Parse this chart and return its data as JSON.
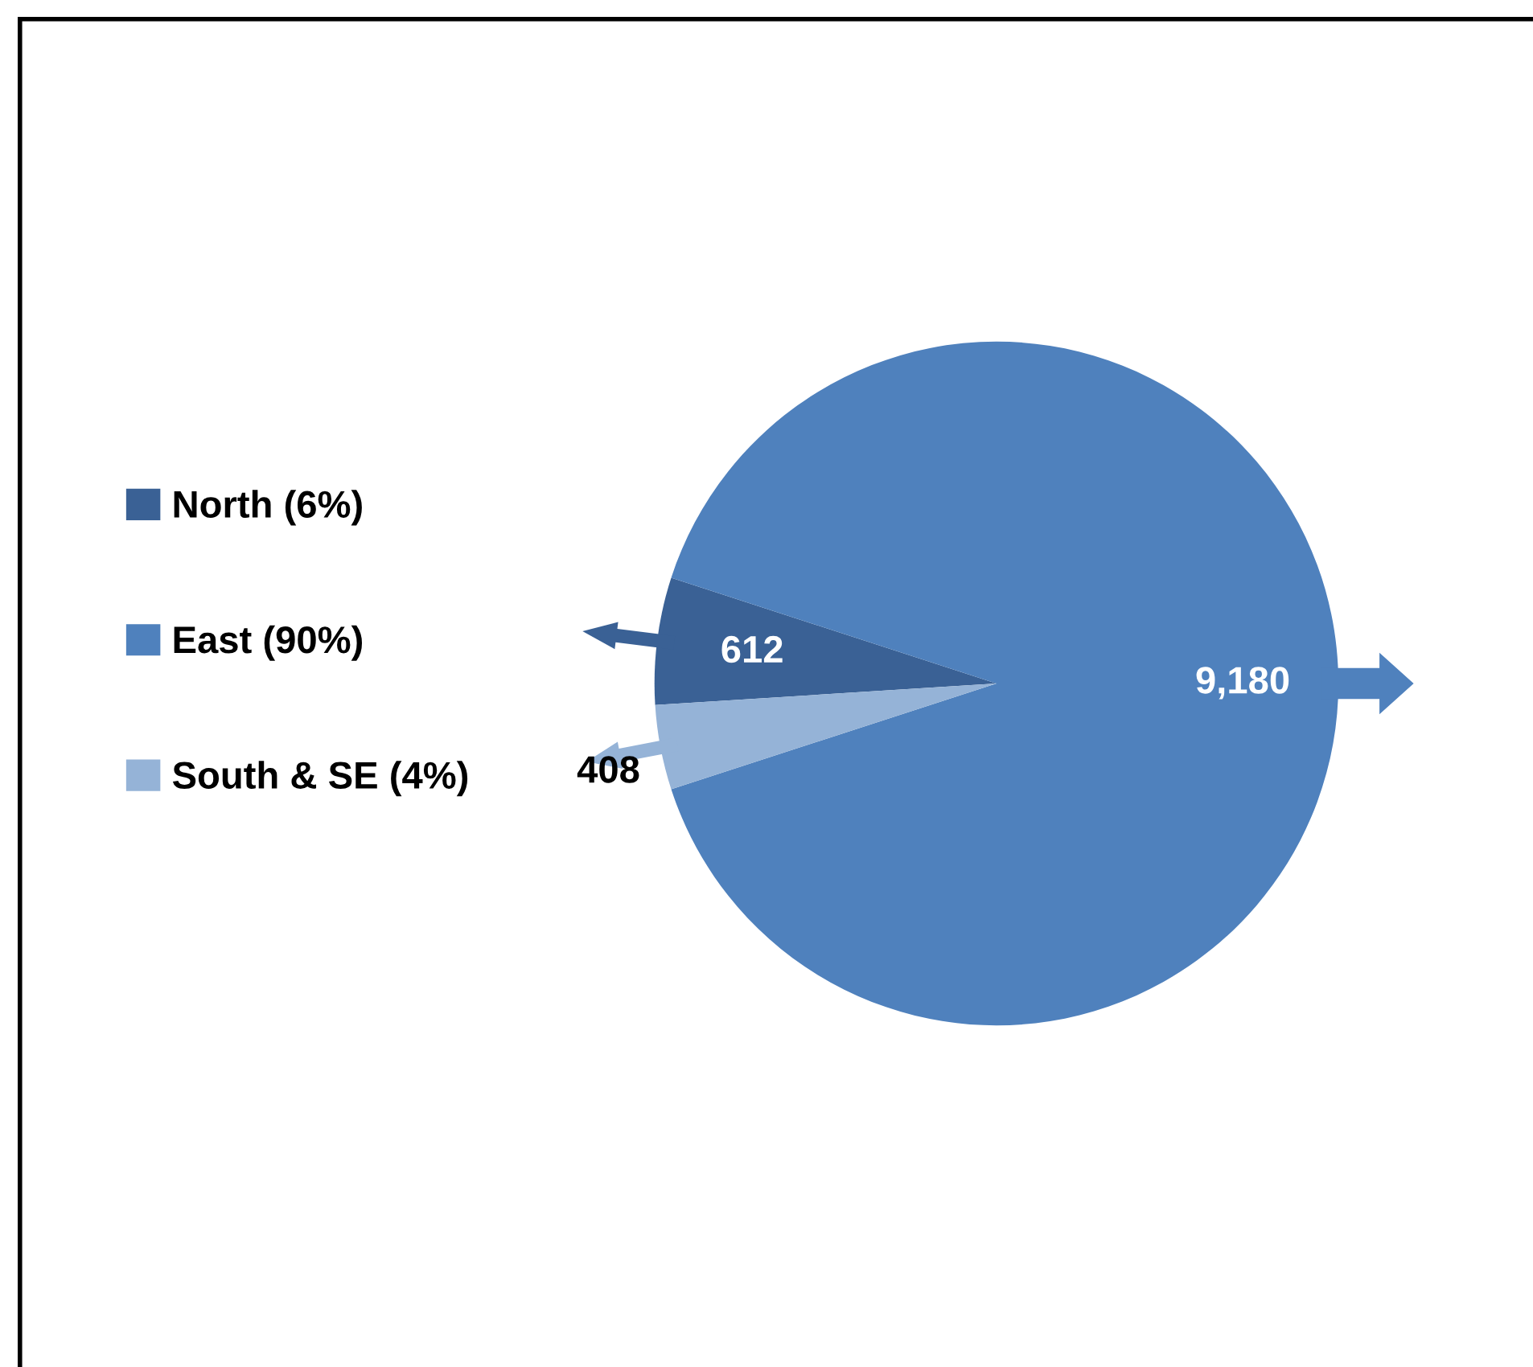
{
  "chart_data": {
    "type": "pie",
    "categories": [
      "North (6%)",
      "East (90%)",
      "South & SE (4%)"
    ],
    "values": [
      612,
      9180,
      408
    ],
    "colors": [
      "#3a6195",
      "#4f81bd",
      "#95b3d7"
    ],
    "value_labels": [
      "612",
      "9,180",
      "408"
    ],
    "legend": "left"
  }
}
